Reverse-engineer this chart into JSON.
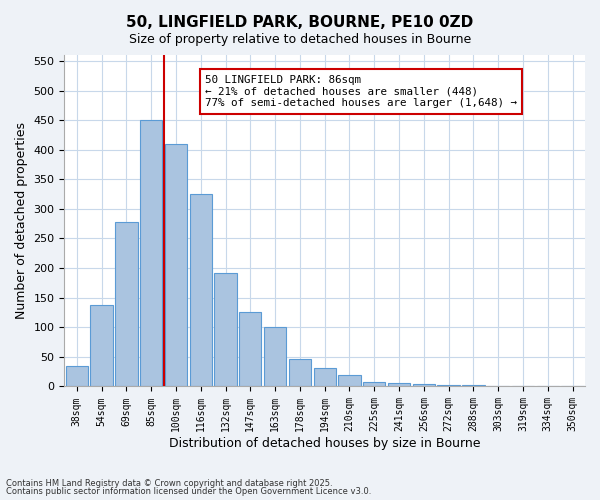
{
  "title": "50, LINGFIELD PARK, BOURNE, PE10 0ZD",
  "subtitle": "Size of property relative to detached houses in Bourne",
  "xlabel": "Distribution of detached houses by size in Bourne",
  "ylabel": "Number of detached properties",
  "bar_color": "#aac4e0",
  "bar_edge_color": "#5b9bd5",
  "grid_color": "#c8d8ea",
  "vline_color": "#cc0000",
  "vline_x": 3.5,
  "annotation_box_text": "50 LINGFIELD PARK: 86sqm\n← 21% of detached houses are smaller (448)\n77% of semi-detached houses are larger (1,648) →",
  "annotation_box_edge_color": "#cc0000",
  "bin_labels": [
    "38sqm",
    "54sqm",
    "69sqm",
    "85sqm",
    "100sqm",
    "116sqm",
    "132sqm",
    "147sqm",
    "163sqm",
    "178sqm",
    "194sqm",
    "210sqm",
    "225sqm",
    "241sqm",
    "256sqm",
    "272sqm",
    "288sqm",
    "303sqm",
    "319sqm",
    "334sqm",
    "350sqm"
  ],
  "bar_heights": [
    35,
    137,
    278,
    450,
    410,
    325,
    192,
    126,
    100,
    47,
    32,
    20,
    7,
    6,
    4,
    3,
    2,
    1,
    1,
    1,
    1
  ],
  "ylim": [
    0,
    560
  ],
  "yticks": [
    0,
    50,
    100,
    150,
    200,
    250,
    300,
    350,
    400,
    450,
    500,
    550
  ],
  "footnote1": "Contains HM Land Registry data © Crown copyright and database right 2025.",
  "footnote2": "Contains public sector information licensed under the Open Government Licence v3.0.",
  "bg_color": "#eef2f7",
  "plot_bg_color": "#ffffff"
}
